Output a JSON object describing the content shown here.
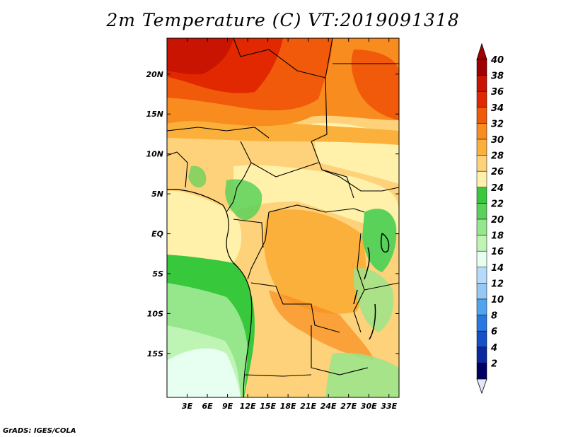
{
  "title": "2m Temperature (C) VT:2019091318",
  "credit": "GrADS: IGES/COLA",
  "map": {
    "lon_range": [
      0,
      34.5
    ],
    "lat_range": [
      -20.5,
      24.5
    ],
    "lon_ticks": [
      {
        "value": 3,
        "label": "3E"
      },
      {
        "value": 6,
        "label": "6E"
      },
      {
        "value": 9,
        "label": "9E"
      },
      {
        "value": 12,
        "label": "12E"
      },
      {
        "value": 15,
        "label": "15E"
      },
      {
        "value": 18,
        "label": "18E"
      },
      {
        "value": 21,
        "label": "21E"
      },
      {
        "value": 24,
        "label": "24E"
      },
      {
        "value": 27,
        "label": "27E"
      },
      {
        "value": 30,
        "label": "30E"
      },
      {
        "value": 33,
        "label": "33E"
      }
    ],
    "lat_ticks": [
      {
        "value": 20,
        "label": "20N"
      },
      {
        "value": 15,
        "label": "15N"
      },
      {
        "value": 10,
        "label": "10N"
      },
      {
        "value": 5,
        "label": "5N"
      },
      {
        "value": 0,
        "label": "EQ"
      },
      {
        "value": -5,
        "label": "5S"
      },
      {
        "value": -10,
        "label": "10S"
      },
      {
        "value": -15,
        "label": "15S"
      }
    ]
  },
  "colorbar": {
    "levels": [
      "40",
      "38",
      "36",
      "34",
      "32",
      "30",
      "28",
      "26",
      "24",
      "22",
      "20",
      "18",
      "16",
      "14",
      "12",
      "10",
      "8",
      "6",
      "4",
      "2"
    ],
    "colors": [
      "#a00000",
      "#c81400",
      "#e12800",
      "#f05a0a",
      "#f98c1e",
      "#fcb03c",
      "#fdd27a",
      "#fff0aa",
      "#37c83c",
      "#5ad25a",
      "#96e68c",
      "#bef5b4",
      "#e6fff0",
      "#b4dcfa",
      "#96c8f5",
      "#50a5f0",
      "#2878e1",
      "#1450c8",
      "#0a28a0",
      "#000064"
    ],
    "top_cap_color": "#a00000",
    "bottom_cap_color": "#e6e6fa"
  }
}
